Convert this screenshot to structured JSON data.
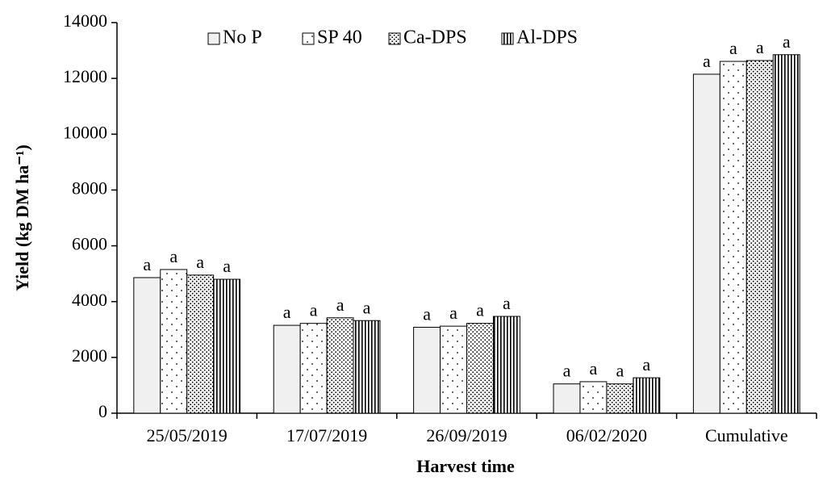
{
  "chart_data": {
    "type": "bar",
    "x_label": "Harvest time",
    "y_label": "Yield (kg DM ha⁻¹)",
    "categories": [
      "25/05/2019",
      "17/07/2019",
      "26/09/2019",
      "06/02/2020",
      "Cumulative"
    ],
    "series": [
      {
        "name": "No P",
        "color": "#f0f0f0",
        "pattern": "solid",
        "values": [
          4860,
          3150,
          3080,
          1050,
          12150
        ],
        "letters": [
          "a",
          "a",
          "a",
          "a",
          "a"
        ]
      },
      {
        "name": "SP 40",
        "color": "#ffffff",
        "pattern": "sparse-dots",
        "values": [
          5150,
          3220,
          3120,
          1130,
          12610
        ],
        "letters": [
          "a",
          "a",
          "a",
          "a",
          "a"
        ]
      },
      {
        "name": "Ca-DPS",
        "color": "#ffffff",
        "pattern": "dense-dots",
        "values": [
          4950,
          3420,
          3220,
          1050,
          12640
        ],
        "letters": [
          "a",
          "a",
          "a",
          "a",
          "a"
        ]
      },
      {
        "name": "Al-DPS",
        "color": "#ffffff",
        "pattern": "vertical-stripes",
        "values": [
          4800,
          3320,
          3470,
          1270,
          12850
        ],
        "letters": [
          "a",
          "a",
          "a",
          "a",
          "a"
        ]
      }
    ],
    "ylim": [
      0,
      14000
    ],
    "yticks": [
      0,
      2000,
      4000,
      6000,
      8000,
      10000,
      12000,
      14000
    ],
    "legend": "top"
  }
}
